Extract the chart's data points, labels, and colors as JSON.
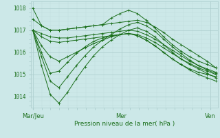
{
  "title": "Pression niveau de la mer( hPa )",
  "background_color": "#cce8e8",
  "grid_color_major": "#aacccc",
  "grid_color_minor": "#bedddd",
  "line_color": "#1a6e1a",
  "marker_color": "#1a6e1a",
  "ylim": [
    1013.5,
    1018.3
  ],
  "yticks": [
    1014,
    1015,
    1016,
    1017,
    1018
  ],
  "xtick_labels": [
    "Mar/Jeu",
    "Mer",
    "Ven"
  ],
  "xtick_positions": [
    0.0,
    0.46,
    0.92
  ],
  "series": [
    [
      1017.5,
      1017.2,
      1017.0,
      1017.0,
      1017.05,
      1017.1,
      1017.15,
      1017.2,
      1017.25,
      1017.3,
      1017.35,
      1017.4,
      1017.45,
      1017.35,
      1017.15,
      1016.9,
      1016.6,
      1016.35,
      1016.1,
      1015.85,
      1015.6,
      1015.3
    ],
    [
      1017.0,
      1016.85,
      1016.7,
      1016.65,
      1016.65,
      1016.7,
      1016.75,
      1016.8,
      1016.85,
      1016.9,
      1016.95,
      1017.0,
      1016.95,
      1016.8,
      1016.6,
      1016.35,
      1016.1,
      1015.85,
      1015.6,
      1015.4,
      1015.25,
      1015.1
    ],
    [
      1017.0,
      1016.7,
      1016.5,
      1016.45,
      1016.5,
      1016.55,
      1016.6,
      1016.65,
      1016.7,
      1016.75,
      1016.8,
      1016.85,
      1016.8,
      1016.65,
      1016.45,
      1016.2,
      1015.95,
      1015.7,
      1015.5,
      1015.3,
      1015.15,
      1015.0
    ],
    [
      1017.0,
      1016.3,
      1015.8,
      1015.6,
      1015.8,
      1016.0,
      1016.2,
      1016.4,
      1016.55,
      1016.7,
      1016.8,
      1016.85,
      1016.75,
      1016.55,
      1016.3,
      1016.0,
      1015.7,
      1015.45,
      1015.25,
      1015.1,
      1015.0,
      1014.9
    ],
    [
      1017.0,
      1015.8,
      1014.7,
      1014.4,
      1014.9,
      1015.4,
      1015.85,
      1016.25,
      1016.55,
      1016.8,
      1017.05,
      1017.25,
      1017.35,
      1017.2,
      1016.95,
      1016.6,
      1016.25,
      1015.95,
      1015.65,
      1015.4,
      1015.2,
      1015.05
    ],
    [
      1017.0,
      1015.4,
      1014.1,
      1013.7,
      1014.2,
      1014.8,
      1015.35,
      1015.85,
      1016.25,
      1016.55,
      1016.8,
      1017.0,
      1017.1,
      1016.95,
      1016.7,
      1016.35,
      1016.0,
      1015.7,
      1015.45,
      1015.25,
      1015.05,
      1014.85
    ],
    [
      1017.0,
      1016.0,
      1015.05,
      1015.15,
      1015.55,
      1015.95,
      1016.25,
      1016.5,
      1016.65,
      1016.75,
      1016.8,
      1016.85,
      1016.75,
      1016.55,
      1016.3,
      1016.0,
      1015.7,
      1015.45,
      1015.2,
      1015.0,
      1014.85,
      1014.7
    ],
    [
      1018.0,
      1017.2,
      1017.0,
      1017.0,
      1017.05,
      1017.1,
      1017.15,
      1017.2,
      1017.25,
      1017.55,
      1017.75,
      1017.9,
      1017.75,
      1017.45,
      1017.1,
      1016.7,
      1016.35,
      1016.05,
      1015.8,
      1015.6,
      1015.45,
      1015.3
    ]
  ]
}
